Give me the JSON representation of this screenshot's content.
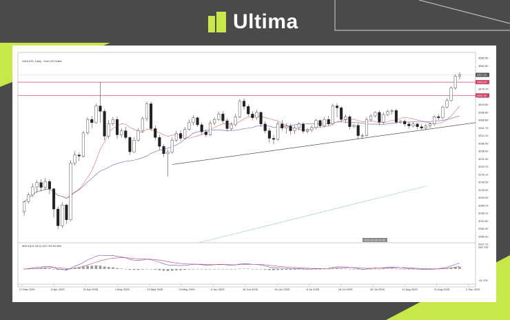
{
  "brand": {
    "name": "Ultima",
    "accent": "#c8e84a",
    "background": "#4a4a4a"
  },
  "chart_data": {
    "type": "candlestick",
    "title": "XAUUSD, Daily : Gold US Dollar",
    "price_axis": {
      "ylim": [
        2905,
        3600
      ],
      "ticks": [
        "3580.55",
        "3562.50",
        "3533.60",
        "3507.20",
        "3479.70",
        "3451.95",
        "3424.50",
        "3396.80",
        "3368.85",
        "3341.70",
        "3314.10",
        "3286.50",
        "3258.90",
        "3231.30",
        "3203.70",
        "3176.10",
        "3148.50",
        "3120.90",
        "3093.30",
        "3065.70",
        "3038.10",
        "3010.50",
        "2982.90",
        "2955.30",
        "2927.70"
      ],
      "current_label": "3527.00",
      "resistance_label": "3500.00",
      "support_label": "3451.00",
      "crosshair_label": "2024.10.09 00:00"
    },
    "x_axis": {
      "ticks": [
        "27 Mar 2025",
        "8 Apr 2025",
        "21 Apr 2025",
        "1 May 2025",
        "13 May 2025",
        "23 May 2025",
        "4 Jun 2025",
        "16 Jun 2025",
        "26 Jun 2025",
        "8 Jul 2025",
        "18 Jul 2025",
        "30 Jul 2025",
        "11 Aug 2025",
        "21 Aug 2025",
        "2 Sep 2025"
      ]
    },
    "candles": [
      [
        3020,
        3057,
        3005,
        3060
      ],
      [
        3057,
        3082,
        3050,
        3092
      ],
      [
        3082,
        3112,
        3075,
        3125
      ],
      [
        3112,
        3128,
        3090,
        3138
      ],
      [
        3128,
        3110,
        3095,
        3140
      ],
      [
        3110,
        3132,
        3100,
        3145
      ],
      [
        3132,
        3105,
        3085,
        3140
      ],
      [
        3105,
        3030,
        2998,
        3110
      ],
      [
        3030,
        2968,
        2955,
        3040
      ],
      [
        2968,
        3045,
        2960,
        3055
      ],
      [
        3045,
        2990,
        2975,
        3050
      ],
      [
        2990,
        3200,
        2985,
        3210
      ],
      [
        3200,
        3230,
        3190,
        3245
      ],
      [
        3230,
        3226,
        3208,
        3240
      ],
      [
        3226,
        3312,
        3220,
        3320
      ],
      [
        3312,
        3362,
        3305,
        3370
      ],
      [
        3362,
        3350,
        3330,
        3375
      ],
      [
        3350,
        3412,
        3345,
        3420
      ],
      [
        3412,
        3392,
        3350,
        3500
      ],
      [
        3392,
        3300,
        3285,
        3400
      ],
      [
        3300,
        3345,
        3290,
        3360
      ],
      [
        3345,
        3362,
        3338,
        3371
      ],
      [
        3362,
        3305,
        3290,
        3372
      ],
      [
        3305,
        3320,
        3295,
        3330
      ],
      [
        3320,
        3295,
        3288,
        3335
      ],
      [
        3295,
        3242,
        3230,
        3300
      ],
      [
        3242,
        3285,
        3238,
        3296
      ],
      [
        3285,
        3320,
        3280,
        3330
      ],
      [
        3320,
        3365,
        3312,
        3372
      ],
      [
        3365,
        3420,
        3355,
        3428
      ],
      [
        3420,
        3328,
        3320,
        3428
      ],
      [
        3328,
        3295,
        3286,
        3340
      ],
      [
        3295,
        3262,
        3250,
        3305
      ],
      [
        3262,
        3235,
        3222,
        3270
      ],
      [
        3235,
        3240,
        3150,
        3250
      ],
      [
        3240,
        3285,
        3235,
        3295
      ],
      [
        3285,
        3310,
        3278,
        3320
      ],
      [
        3310,
        3292,
        3282,
        3322
      ],
      [
        3292,
        3325,
        3288,
        3334
      ],
      [
        3325,
        3350,
        3320,
        3362
      ],
      [
        3350,
        3368,
        3340,
        3378
      ],
      [
        3368,
        3342,
        3335,
        3372
      ],
      [
        3342,
        3316,
        3305,
        3350
      ],
      [
        3316,
        3305,
        3298,
        3325
      ],
      [
        3305,
        3348,
        3300,
        3358
      ],
      [
        3348,
        3362,
        3340,
        3370
      ],
      [
        3362,
        3382,
        3358,
        3390
      ],
      [
        3382,
        3357,
        3348,
        3392
      ],
      [
        3357,
        3328,
        3318,
        3365
      ],
      [
        3328,
        3342,
        3320,
        3352
      ],
      [
        3342,
        3372,
        3336,
        3382
      ],
      [
        3372,
        3430,
        3366,
        3438
      ],
      [
        3430,
        3410,
        3398,
        3440
      ],
      [
        3410,
        3382,
        3374,
        3418
      ],
      [
        3382,
        3368,
        3360,
        3392
      ],
      [
        3368,
        3388,
        3360,
        3398
      ],
      [
        3388,
        3345,
        3335,
        3392
      ],
      [
        3345,
        3320,
        3310,
        3355
      ],
      [
        3320,
        3292,
        3275,
        3330
      ],
      [
        3292,
        3288,
        3270,
        3305
      ],
      [
        3288,
        3345,
        3282,
        3355
      ],
      [
        3345,
        3330,
        3320,
        3360
      ],
      [
        3330,
        3337,
        3310,
        3348
      ],
      [
        3337,
        3320,
        3305,
        3345
      ],
      [
        3320,
        3330,
        3308,
        3340
      ],
      [
        3330,
        3345,
        3322,
        3352
      ],
      [
        3345,
        3318,
        3310,
        3352
      ],
      [
        3318,
        3322,
        3310,
        3330
      ],
      [
        3322,
        3332,
        3315,
        3340
      ],
      [
        3332,
        3358,
        3325,
        3365
      ],
      [
        3358,
        3338,
        3330,
        3362
      ],
      [
        3338,
        3362,
        3332,
        3370
      ],
      [
        3362,
        3345,
        3338,
        3375
      ],
      [
        3345,
        3412,
        3340,
        3420
      ],
      [
        3412,
        3405,
        3370,
        3422
      ],
      [
        3405,
        3362,
        3352,
        3410
      ],
      [
        3362,
        3372,
        3348,
        3380
      ],
      [
        3372,
        3335,
        3325,
        3378
      ],
      [
        3335,
        3340,
        3330,
        3345
      ],
      [
        3340,
        3302,
        3288,
        3348
      ],
      [
        3302,
        3302,
        3290,
        3310
      ],
      [
        3302,
        3362,
        3298,
        3370
      ],
      [
        3362,
        3375,
        3354,
        3382
      ],
      [
        3375,
        3388,
        3370,
        3392
      ],
      [
        3388,
        3352,
        3340,
        3395
      ],
      [
        3352,
        3380,
        3345,
        3388
      ],
      [
        3380,
        3392,
        3374,
        3398
      ],
      [
        3392,
        3395,
        3380,
        3400
      ],
      [
        3395,
        3352,
        3345,
        3402
      ],
      [
        3352,
        3355,
        3345,
        3360
      ],
      [
        3355,
        3345,
        3335,
        3362
      ],
      [
        3345,
        3338,
        3328,
        3352
      ],
      [
        3338,
        3345,
        3332,
        3352
      ],
      [
        3345,
        3335,
        3325,
        3350
      ],
      [
        3335,
        3330,
        3325,
        3345
      ],
      [
        3330,
        3338,
        3322,
        3345
      ],
      [
        3338,
        3345,
        3330,
        3350
      ],
      [
        3345,
        3372,
        3338,
        3378
      ],
      [
        3372,
        3368,
        3360,
        3382
      ],
      [
        3368,
        3408,
        3362,
        3412
      ],
      [
        3408,
        3432,
        3402,
        3440
      ],
      [
        3432,
        3478,
        3428,
        3485
      ],
      [
        3478,
        3522,
        3472,
        3530
      ],
      [
        3522,
        3527,
        3510,
        3535
      ]
    ],
    "lines": {
      "resistance": 3500,
      "support": 3451,
      "trend_start": 3195,
      "trend_end": 3350
    },
    "macd": {
      "label": "MACD(12,26,9) 102.703 60.466",
      "top_label": "282.733",
      "bottom_label": "-51.376"
    }
  }
}
